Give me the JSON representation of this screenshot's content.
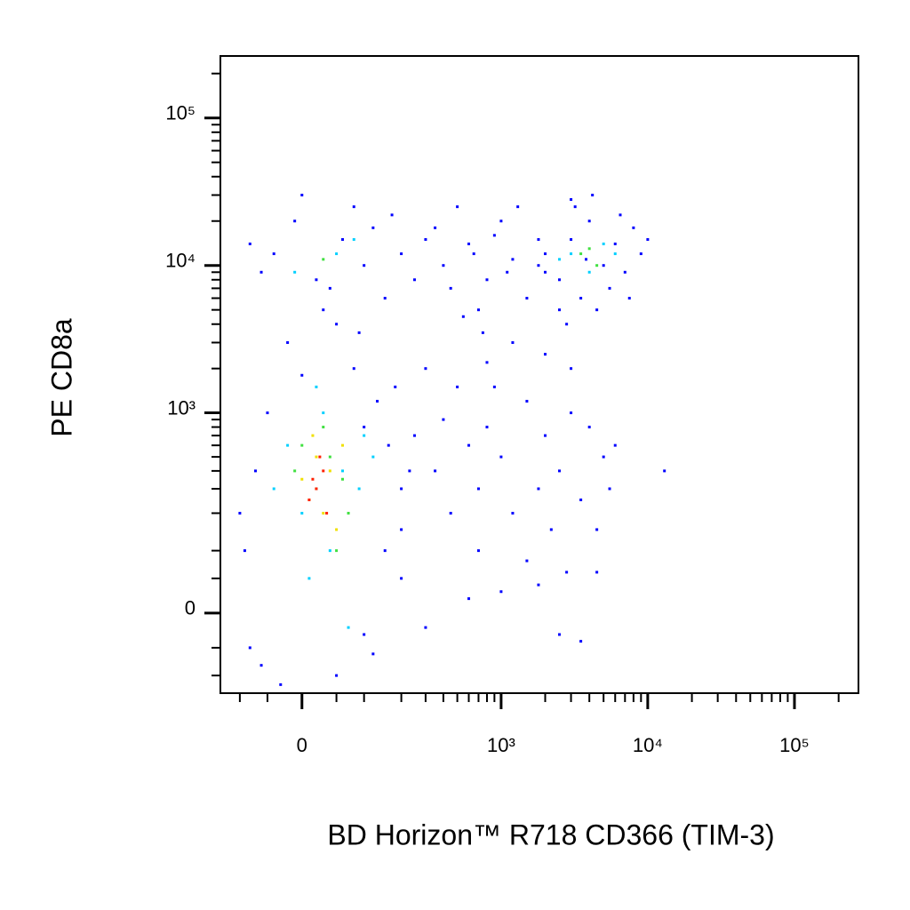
{
  "chart_data": {
    "type": "scatter",
    "x_label": "BD Horizon™ R718 CD366 (TIM-3)",
    "y_label": "PE CD8a",
    "xscale": "biexponential",
    "yscale": "biexponential",
    "xlim": [
      -146,
      273000
    ],
    "ylim": [
      -141,
      263000
    ],
    "xticks": [
      0,
      {
        "value": 1000,
        "label": "10³"
      },
      {
        "value": 10000,
        "label": "10⁴"
      },
      {
        "value": 100000,
        "label": "10⁵"
      }
    ],
    "yticks": [
      0,
      {
        "value": 1000,
        "label": "10³"
      },
      {
        "value": 10000,
        "label": "10⁴"
      },
      {
        "value": 100000,
        "label": "10⁵"
      }
    ],
    "xminorticks": [
      -100,
      -50,
      50,
      100,
      200,
      300,
      400,
      500,
      600,
      700,
      800,
      900,
      2000,
      3000,
      4000,
      5000,
      6000,
      7000,
      8000,
      9000,
      20000,
      30000,
      40000,
      50000,
      60000,
      70000,
      80000,
      90000,
      200000
    ],
    "yminorticks": [
      -100,
      -50,
      50,
      100,
      200,
      300,
      400,
      500,
      600,
      700,
      800,
      900,
      2000,
      3000,
      4000,
      5000,
      6000,
      7000,
      8000,
      9000,
      20000,
      30000,
      40000,
      50000,
      60000,
      70000,
      80000,
      90000,
      200000
    ],
    "series": [
      {
        "color": "#0000ff",
        "x": [
          -40,
          20,
          60,
          -10,
          100,
          150,
          -60,
          80,
          30,
          200,
          -20,
          50,
          120,
          0,
          250,
          -80,
          170,
          40,
          300,
          90,
          400,
          600,
          800,
          1000,
          1200,
          1500,
          500,
          700,
          900,
          1100,
          350,
          450,
          650,
          1300,
          2000,
          1800,
          2500,
          3000,
          750,
          550,
          2000,
          2500,
          3000,
          3500,
          4000,
          5000,
          6000,
          7000,
          8000,
          4500,
          3200,
          2800,
          6500,
          5500,
          9000,
          10000,
          1800,
          4200,
          7500,
          3800,
          300,
          500,
          800,
          1000,
          1500,
          2000,
          3000,
          700,
          1200,
          2500,
          4000,
          600,
          400,
          900,
          1800,
          5000,
          3500,
          2200,
          1500,
          700,
          2800,
          1000,
          450,
          350,
          5500,
          4500,
          6000,
          3000,
          2000,
          1200,
          800,
          13000,
          4500,
          3500,
          2500,
          1800,
          300,
          600,
          200,
          250,
          -100,
          -80,
          150,
          200,
          100,
          -50,
          180,
          -70,
          120,
          50,
          -30,
          200,
          160,
          -90,
          80,
          0,
          130,
          -60,
          100,
          230
        ],
        "y": [
          12000,
          8000,
          15000,
          20000,
          10000,
          6000,
          9000,
          25000,
          5000,
          12000,
          3000,
          4000,
          18000,
          30000,
          8000,
          14000,
          22000,
          7000,
          15000,
          3500,
          10000,
          14000,
          8000,
          20000,
          11000,
          6000,
          25000,
          5000,
          16000,
          9000,
          18000,
          7000,
          12000,
          25000,
          9000,
          15000,
          5000,
          28000,
          3500,
          4500,
          12000,
          8000,
          15000,
          6000,
          20000,
          10000,
          14000,
          9000,
          18000,
          5000,
          25000,
          4000,
          22000,
          7000,
          12000,
          15000,
          10000,
          30000,
          6000,
          11000,
          2000,
          1500,
          800,
          500,
          1200,
          700,
          1000,
          300,
          200,
          400,
          800,
          600,
          900,
          1500,
          300,
          500,
          250,
          150,
          80,
          100,
          60,
          30,
          200,
          400,
          300,
          150,
          600,
          2000,
          2500,
          3000,
          2200,
          400,
          60,
          -40,
          -30,
          40,
          -20,
          20,
          150,
          700,
          200,
          -50,
          100,
          300,
          800,
          1000,
          1500,
          400,
          -60,
          -100,
          -120,
          50,
          600,
          100,
          2000,
          1800,
          1200,
          -80,
          -30,
          400
        ]
      },
      {
        "color": "#00d0ff",
        "x": [
          0,
          60,
          -20,
          90,
          40,
          -40,
          100,
          30,
          70,
          10,
          120,
          50,
          -10,
          80,
          3000,
          4000,
          5000,
          2500,
          6000,
          20
        ],
        "y": [
          200,
          400,
          600,
          300,
          100,
          300,
          700,
          1000,
          -20,
          50,
          500,
          12000,
          9000,
          15000,
          12000,
          9000,
          14000,
          11000,
          12000,
          1500
        ]
      },
      {
        "color": "#40e040",
        "x": [
          20,
          40,
          -10,
          70,
          30,
          50,
          0,
          60,
          30,
          3500,
          4500,
          4000
        ],
        "y": [
          300,
          500,
          400,
          200,
          800,
          100,
          600,
          350,
          11000,
          12000,
          10000,
          13000
        ]
      },
      {
        "color": "#f0e000",
        "x": [
          10,
          40,
          20,
          50,
          0,
          30,
          60,
          15
        ],
        "y": [
          250,
          400,
          500,
          150,
          350,
          200,
          600,
          700
        ]
      },
      {
        "color": "#ff2000",
        "x": [
          20,
          30,
          10,
          25,
          35,
          15
        ],
        "y": [
          300,
          400,
          250,
          500,
          200,
          350
        ]
      }
    ]
  }
}
